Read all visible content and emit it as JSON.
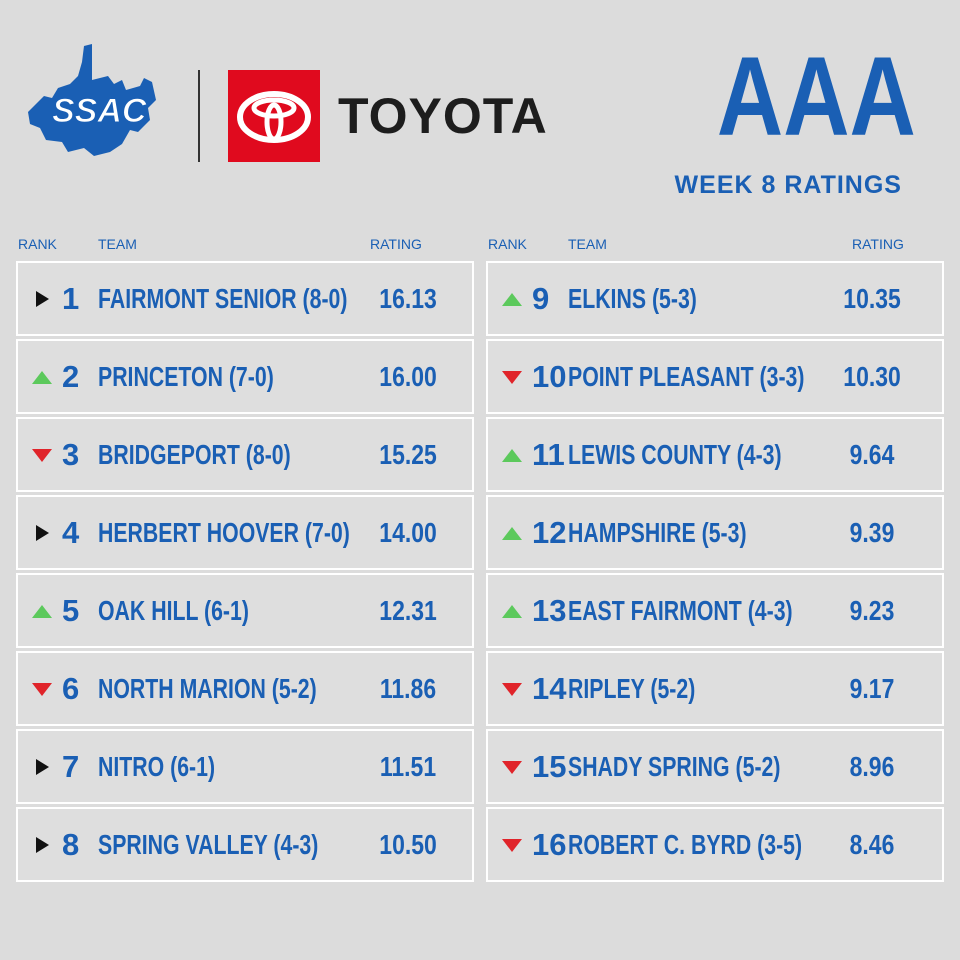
{
  "header": {
    "logo_text": "SSAC",
    "brand": "TOYOTA",
    "classification": "AAA",
    "subtitle": "WEEK 8 RATINGS"
  },
  "colors": {
    "accent_blue": "#1a5fb4",
    "toyota_red": "#e00a1e",
    "up_green": "#5cc95c",
    "down_red": "#e0242a",
    "same_black": "#111111"
  },
  "columns": {
    "rank": "RANK",
    "team": "TEAM",
    "rating": "RATING"
  },
  "left": [
    {
      "movement": "same",
      "rank": "1",
      "team": "FAIRMONT SENIOR (8-0)",
      "rating": "16.13"
    },
    {
      "movement": "up",
      "rank": "2",
      "team": "PRINCETON (7-0)",
      "rating": "16.00"
    },
    {
      "movement": "down",
      "rank": "3",
      "team": "BRIDGEPORT (8-0)",
      "rating": "15.25"
    },
    {
      "movement": "same",
      "rank": "4",
      "team": "HERBERT HOOVER (7-0)",
      "rating": "14.00"
    },
    {
      "movement": "up",
      "rank": "5",
      "team": "OAK HILL (6-1)",
      "rating": "12.31"
    },
    {
      "movement": "down",
      "rank": "6",
      "team": "NORTH MARION (5-2)",
      "rating": "11.86"
    },
    {
      "movement": "same",
      "rank": "7",
      "team": "NITRO (6-1)",
      "rating": "11.51"
    },
    {
      "movement": "same",
      "rank": "8",
      "team": "SPRING VALLEY (4-3)",
      "rating": "10.50"
    }
  ],
  "right": [
    {
      "movement": "up",
      "rank": "9",
      "team": "ELKINS (5-3)",
      "rating": "10.35"
    },
    {
      "movement": "down",
      "rank": "10",
      "team": "POINT PLEASANT  (3-3)",
      "rating": "10.30"
    },
    {
      "movement": "up",
      "rank": "11",
      "team": "LEWIS COUNTY (4-3)",
      "rating": "9.64"
    },
    {
      "movement": "up",
      "rank": "12",
      "team": "HAMPSHIRE (5-3)",
      "rating": "9.39"
    },
    {
      "movement": "up",
      "rank": "13",
      "team": "EAST FAIRMONT (4-3)",
      "rating": "9.23"
    },
    {
      "movement": "down",
      "rank": "14",
      "team": "RIPLEY (5-2)",
      "rating": "9.17"
    },
    {
      "movement": "down",
      "rank": "15",
      "team": "SHADY SPRING (5-2)",
      "rating": "8.96"
    },
    {
      "movement": "down",
      "rank": "16",
      "team": "ROBERT C. BYRD (3-5)",
      "rating": "8.46"
    }
  ]
}
